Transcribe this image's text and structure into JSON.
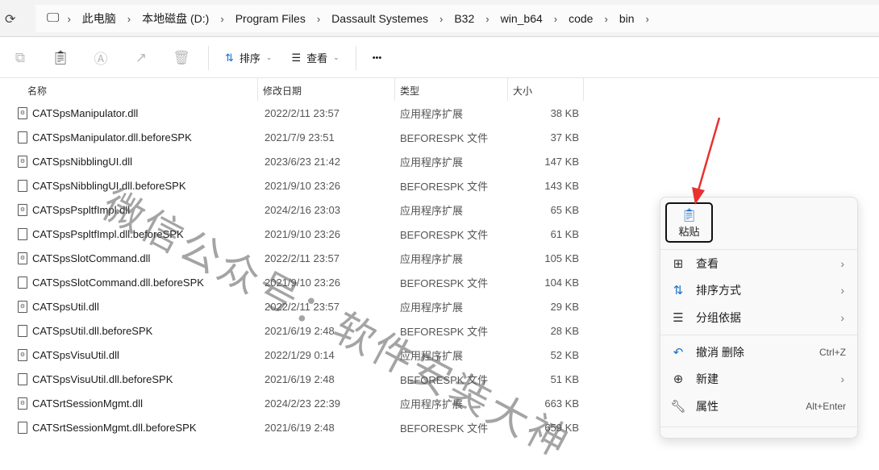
{
  "address": {
    "crumbs": [
      "此电脑",
      "本地磁盘 (D:)",
      "Program Files",
      "Dassault Systemes",
      "B32",
      "win_b64",
      "code",
      "bin"
    ]
  },
  "toolbar": {
    "sort_label": "排序",
    "view_label": "查看",
    "more_label": "•••"
  },
  "columns": [
    "名称",
    "修改日期",
    "类型",
    "大小"
  ],
  "files": [
    {
      "name": "CATSpsManipulator.dll",
      "date": "2022/2/11 23:57",
      "type": "应用程序扩展",
      "size": "38 KB",
      "ext": "dll"
    },
    {
      "name": "CATSpsManipulator.dll.beforeSPK",
      "date": "2021/7/9 23:51",
      "type": "BEFORESPK 文件",
      "size": "37 KB",
      "ext": "spk"
    },
    {
      "name": "CATSpsNibblingUI.dll",
      "date": "2023/6/23 21:42",
      "type": "应用程序扩展",
      "size": "147 KB",
      "ext": "dll"
    },
    {
      "name": "CATSpsNibblingUI.dll.beforeSPK",
      "date": "2021/9/10 23:26",
      "type": "BEFORESPK 文件",
      "size": "143 KB",
      "ext": "spk"
    },
    {
      "name": "CATSpsPspltfImpl.dll",
      "date": "2024/2/16 23:03",
      "type": "应用程序扩展",
      "size": "65 KB",
      "ext": "dll"
    },
    {
      "name": "CATSpsPspltfImpl.dll.beforeSPK",
      "date": "2021/9/10 23:26",
      "type": "BEFORESPK 文件",
      "size": "61 KB",
      "ext": "spk"
    },
    {
      "name": "CATSpsSlotCommand.dll",
      "date": "2022/2/11 23:57",
      "type": "应用程序扩展",
      "size": "105 KB",
      "ext": "dll"
    },
    {
      "name": "CATSpsSlotCommand.dll.beforeSPK",
      "date": "2021/9/10 23:26",
      "type": "BEFORESPK 文件",
      "size": "104 KB",
      "ext": "spk"
    },
    {
      "name": "CATSpsUtil.dll",
      "date": "2022/2/11 23:57",
      "type": "应用程序扩展",
      "size": "29 KB",
      "ext": "dll"
    },
    {
      "name": "CATSpsUtil.dll.beforeSPK",
      "date": "2021/6/19 2:48",
      "type": "BEFORESPK 文件",
      "size": "28 KB",
      "ext": "spk"
    },
    {
      "name": "CATSpsVisuUtil.dll",
      "date": "2022/1/29 0:14",
      "type": "应用程序扩展",
      "size": "52 KB",
      "ext": "dll"
    },
    {
      "name": "CATSpsVisuUtil.dll.beforeSPK",
      "date": "2021/6/19 2:48",
      "type": "BEFORESPK 文件",
      "size": "51 KB",
      "ext": "spk"
    },
    {
      "name": "CATSrtSessionMgmt.dll",
      "date": "2024/2/23 22:39",
      "type": "应用程序扩展",
      "size": "663 KB",
      "ext": "dll"
    },
    {
      "name": "CATSrtSessionMgmt.dll.beforeSPK",
      "date": "2021/6/19 2:48",
      "type": "BEFORESPK 文件",
      "size": "659 KB",
      "ext": "spk"
    }
  ],
  "context_menu": {
    "paste_label": "粘贴",
    "items": [
      {
        "label": "查看",
        "icon": "grid-icon",
        "submenu": true
      },
      {
        "label": "排序方式",
        "icon": "sort-icon",
        "submenu": true
      },
      {
        "label": "分组依据",
        "icon": "group-icon",
        "submenu": true
      },
      {
        "label": "撤消 删除",
        "icon": "undo-icon",
        "shortcut": "Ctrl+Z"
      },
      {
        "label": "新建",
        "icon": "plus-circle-icon",
        "submenu": true
      },
      {
        "label": "属性",
        "icon": "wrench-icon",
        "shortcut": "Alt+Enter"
      }
    ]
  },
  "watermark": "微信公众号：软件安装大神",
  "colors": {
    "accent": "#1a6fc9",
    "arrow": "#e8322f"
  }
}
